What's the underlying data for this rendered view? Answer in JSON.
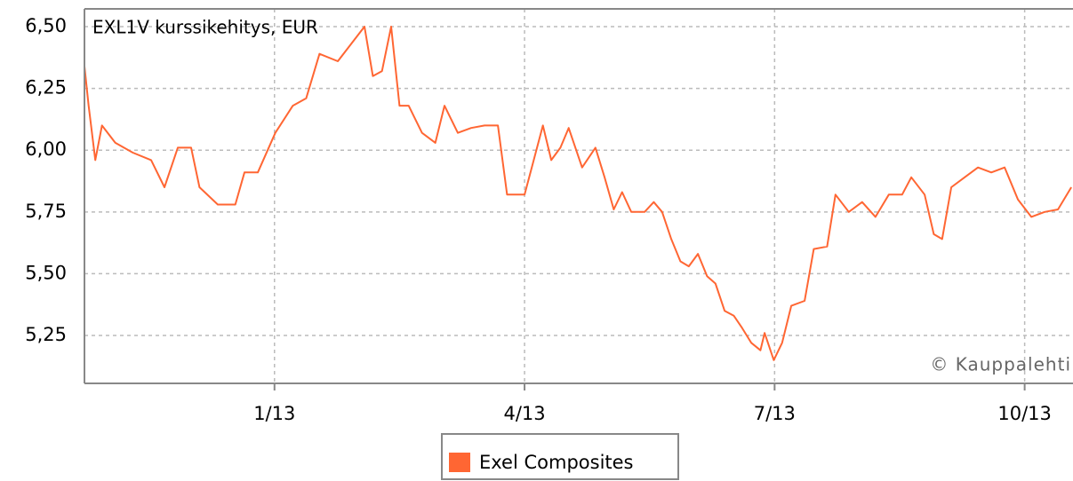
{
  "chart_data": {
    "type": "line",
    "title": "EXL1V kurssikehitys, EUR",
    "annotation": "© Kauppalehti",
    "series": [
      {
        "name": "Exel Composites",
        "color": "#ff6633",
        "x": [
          -2.28,
          -2.23,
          -2.15,
          -2.07,
          -1.91,
          -1.7,
          -1.48,
          -1.32,
          -1.16,
          -1.0,
          -0.9,
          -0.68,
          -0.47,
          -0.36,
          -0.2,
          0.01,
          0.22,
          0.38,
          0.54,
          0.76,
          0.92,
          1.08,
          1.18,
          1.29,
          1.4,
          1.5,
          1.61,
          1.77,
          1.93,
          2.04,
          2.2,
          2.36,
          2.52,
          2.68,
          2.79,
          3.0,
          3.11,
          3.22,
          3.32,
          3.43,
          3.53,
          3.69,
          3.85,
          3.96,
          4.07,
          4.17,
          4.28,
          4.44,
          4.55,
          4.65,
          4.76,
          4.87,
          4.97,
          5.08,
          5.19,
          5.29,
          5.4,
          5.51,
          5.61,
          5.72,
          5.83,
          5.88,
          5.99,
          6.09,
          6.2,
          6.36,
          6.47,
          6.63,
          6.73,
          6.89,
          7.05,
          7.21,
          7.37,
          7.53,
          7.64,
          7.8,
          7.91,
          8.01,
          8.12,
          8.28,
          8.44,
          8.6,
          8.76,
          8.92,
          9.08,
          9.24,
          9.4,
          9.56
        ],
        "values": [
          6.34,
          6.18,
          5.96,
          6.1,
          6.03,
          5.99,
          5.96,
          5.85,
          6.01,
          6.01,
          5.85,
          5.78,
          5.78,
          5.91,
          5.91,
          6.07,
          6.18,
          6.21,
          6.39,
          6.36,
          6.43,
          6.5,
          6.3,
          6.32,
          6.5,
          6.18,
          6.18,
          6.07,
          6.03,
          6.18,
          6.07,
          6.09,
          6.1,
          6.1,
          5.82,
          5.82,
          5.96,
          6.1,
          5.96,
          6.01,
          6.09,
          5.93,
          6.01,
          5.89,
          5.76,
          5.83,
          5.75,
          5.75,
          5.79,
          5.75,
          5.64,
          5.55,
          5.53,
          5.58,
          5.49,
          5.46,
          5.35,
          5.33,
          5.28,
          5.22,
          5.19,
          5.26,
          5.15,
          5.22,
          5.37,
          5.39,
          5.6,
          5.61,
          5.82,
          5.75,
          5.79,
          5.73,
          5.82,
          5.82,
          5.89,
          5.82,
          5.66,
          5.64,
          5.85,
          5.89,
          5.93,
          5.91,
          5.93,
          5.8,
          5.73,
          5.75,
          5.76,
          5.85
        ]
      }
    ],
    "xlim": [
      -2.28,
      9.58
    ],
    "xticks": [
      {
        "value": 0,
        "label": "1/13"
      },
      {
        "value": 3,
        "label": "4/13"
      },
      {
        "value": 6,
        "label": "7/13"
      },
      {
        "value": 9,
        "label": "10/13"
      }
    ],
    "ylim": [
      5.056,
      6.572
    ],
    "yticks": [
      {
        "value": 5.25,
        "label": "5,25"
      },
      {
        "value": 5.5,
        "label": "5,50"
      },
      {
        "value": 5.75,
        "label": "5,75"
      },
      {
        "value": 6,
        "label": "6,00"
      },
      {
        "value": 6.25,
        "label": "6,25"
      },
      {
        "value": 6.5,
        "label": "6,50"
      }
    ],
    "grid": true,
    "legend": "bottom"
  }
}
